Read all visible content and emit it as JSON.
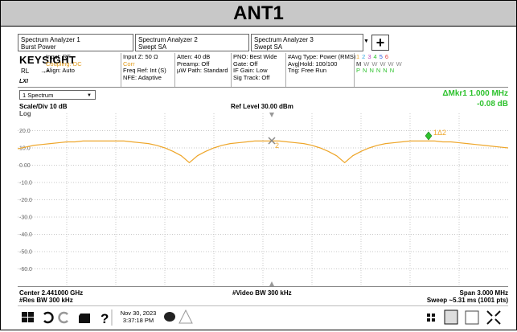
{
  "title": "ANT1",
  "tabs": [
    {
      "line1": "Spectrum Analyzer 1",
      "line2": "Burst Power"
    },
    {
      "line1": "Spectrum Analyzer 2",
      "line2": "Swept SA"
    },
    {
      "line1": "Spectrum Analyzer 3",
      "line2": "Swept SA"
    }
  ],
  "add_button": "+",
  "status": {
    "brand": "KEYSIGHT",
    "rl": "RL",
    "lxi": "LXI",
    "columns": [
      [
        "Input: RF",
        "Coupling: DC",
        "Align: Auto"
      ],
      [
        "Input Z: 50 Ω",
        "Corr",
        "Freq Ref: Int (S)",
        "NFE: Adaptive"
      ],
      [
        "Atten: 40 dB",
        "Preamp: Off",
        "µW Path: Standard"
      ],
      [
        "PNO: Best Wide",
        "Gate: Off",
        "IF Gain: Low",
        "Sig Track: Off"
      ],
      [
        "#Avg Type: Power (RMS)",
        "Avg|Hold: 100/100",
        "Trig: Free Run"
      ]
    ]
  },
  "trace_table": {
    "numbers": [
      "1",
      "2",
      "3",
      "4",
      "5",
      "6"
    ],
    "modes": [
      "M",
      "W",
      "W",
      "W",
      "W",
      "W"
    ],
    "detectors": [
      "P",
      "N",
      "N",
      "N",
      "N",
      "N"
    ]
  },
  "window": "1 Spectrum",
  "marker_readout": {
    "frequency": "ΔMkr1 1.000 MHz",
    "level": "-0.08 dB"
  },
  "scale": "Scale/Div 10 dB",
  "ref_level": "Ref Level 30.00 dBm",
  "scale_type": "Log",
  "marker_labels": [
    "2",
    "1Δ2"
  ],
  "chart_data": {
    "type": "line",
    "color": "#eea62a",
    "ylim": [
      -70,
      30
    ],
    "grid": true,
    "yticks": [
      {
        "value": 20,
        "label": "20.0"
      },
      {
        "value": 10,
        "label": "10.0"
      },
      {
        "value": 0,
        "label": "0.00"
      },
      {
        "value": -10,
        "label": "-10.0"
      },
      {
        "value": -20,
        "label": "-20.0"
      },
      {
        "value": -30,
        "label": "-30.0"
      },
      {
        "value": -40,
        "label": "-40.0"
      },
      {
        "value": -50,
        "label": "-50.0"
      },
      {
        "value": -60,
        "label": "-60.0"
      }
    ],
    "values": [
      9.5,
      10.5,
      11.5,
      12,
      12.5,
      13,
      13.5,
      13.5,
      14,
      14,
      14,
      14,
      14,
      14,
      13.5,
      13,
      12.5,
      11.5,
      10,
      8,
      5.5,
      1.5,
      5.5,
      8,
      10,
      11.5,
      12.5,
      13,
      13.5,
      14,
      14,
      14,
      14,
      13.5,
      13,
      12.5,
      11.5,
      10,
      8,
      5.5,
      1.5,
      5.5,
      8,
      10,
      11.5,
      12.5,
      13,
      13.5,
      14,
      14,
      14,
      14,
      13.5,
      13.5,
      13,
      12.5,
      12,
      11.5,
      11,
      10.5,
      10
    ]
  },
  "footer": {
    "center": "Center 2.441000 GHz",
    "video_bw": "#Video BW 300 kHz",
    "span": "Span 3.000 MHz",
    "res_bw": "#Res BW 300 kHz",
    "sweep": "Sweep ~5.31 ms (1001 pts)"
  },
  "taskbar": {
    "help": "?",
    "date": "Nov 30, 2023",
    "time": "3:37:18 PM"
  }
}
